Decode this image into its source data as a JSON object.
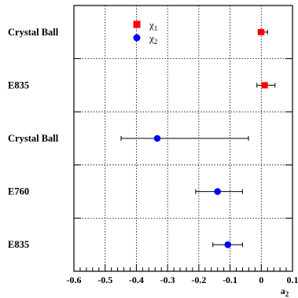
{
  "chart_data": {
    "type": "scatter",
    "orientation": "horizontal",
    "categories": [
      "Crystal Ball",
      "E835",
      "Crystal Ball",
      "E760",
      "E835"
    ],
    "xlabel": "a",
    "xlabel_subscript": "2",
    "xlim": [
      -0.6,
      0.1
    ],
    "xticks": [
      "-0.6",
      "-0.5",
      "-0.4",
      "-0.3",
      "-0.2",
      "-0.1",
      "0",
      "0.1"
    ],
    "grid": true,
    "legend_position": "top-left",
    "series": [
      {
        "name": "χ1",
        "legend_base": "χ",
        "legend_sub": "1",
        "marker": "square",
        "color": "#ff0000",
        "points": [
          {
            "category_index": 0,
            "value": 0.0,
            "err_low": 0.01,
            "err_high": 0.02
          },
          {
            "category_index": 1,
            "value": 0.011,
            "err_low": 0.025,
            "err_high": 0.033
          }
        ]
      },
      {
        "name": "χ2",
        "legend_base": "χ",
        "legend_sub": "2",
        "marker": "circle",
        "color": "#0000ff",
        "points": [
          {
            "category_index": 2,
            "value": -0.333,
            "err_low": 0.116,
            "err_high": 0.292
          },
          {
            "category_index": 3,
            "value": -0.14,
            "err_low": 0.07,
            "err_high": 0.08
          },
          {
            "category_index": 4,
            "value": -0.107,
            "err_low": 0.048,
            "err_high": 0.047
          }
        ]
      }
    ]
  }
}
